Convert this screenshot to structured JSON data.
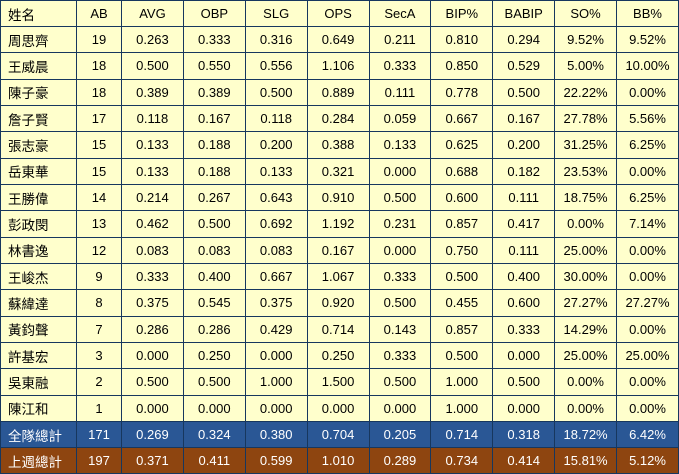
{
  "chart_data": {
    "type": "table",
    "title": "",
    "columns": [
      "姓名",
      "AB",
      "AVG",
      "OBP",
      "SLG",
      "OPS",
      "SecA",
      "BIP%",
      "BABIP",
      "SO%",
      "BB%"
    ],
    "rows": [
      [
        "周思齊",
        "19",
        "0.263",
        "0.333",
        "0.316",
        "0.649",
        "0.211",
        "0.810",
        "0.294",
        "9.52%",
        "9.52%"
      ],
      [
        "王威晨",
        "18",
        "0.500",
        "0.550",
        "0.556",
        "1.106",
        "0.333",
        "0.850",
        "0.529",
        "5.00%",
        "10.00%"
      ],
      [
        "陳子豪",
        "18",
        "0.389",
        "0.389",
        "0.500",
        "0.889",
        "0.111",
        "0.778",
        "0.500",
        "22.22%",
        "0.00%"
      ],
      [
        "詹子賢",
        "17",
        "0.118",
        "0.167",
        "0.118",
        "0.284",
        "0.059",
        "0.667",
        "0.167",
        "27.78%",
        "5.56%"
      ],
      [
        "張志豪",
        "15",
        "0.133",
        "0.188",
        "0.200",
        "0.388",
        "0.133",
        "0.625",
        "0.200",
        "31.25%",
        "6.25%"
      ],
      [
        "岳東華",
        "15",
        "0.133",
        "0.188",
        "0.133",
        "0.321",
        "0.000",
        "0.688",
        "0.182",
        "23.53%",
        "0.00%"
      ],
      [
        "王勝偉",
        "14",
        "0.214",
        "0.267",
        "0.643",
        "0.910",
        "0.500",
        "0.600",
        "0.111",
        "18.75%",
        "6.25%"
      ],
      [
        "彭政閔",
        "13",
        "0.462",
        "0.500",
        "0.692",
        "1.192",
        "0.231",
        "0.857",
        "0.417",
        "0.00%",
        "7.14%"
      ],
      [
        "林書逸",
        "12",
        "0.083",
        "0.083",
        "0.083",
        "0.167",
        "0.000",
        "0.750",
        "0.111",
        "25.00%",
        "0.00%"
      ],
      [
        "王峻杰",
        "9",
        "0.333",
        "0.400",
        "0.667",
        "1.067",
        "0.333",
        "0.500",
        "0.400",
        "30.00%",
        "0.00%"
      ],
      [
        "蘇緯達",
        "8",
        "0.375",
        "0.545",
        "0.375",
        "0.920",
        "0.500",
        "0.455",
        "0.600",
        "27.27%",
        "27.27%"
      ],
      [
        "黃鈞聲",
        "7",
        "0.286",
        "0.286",
        "0.429",
        "0.714",
        "0.143",
        "0.857",
        "0.333",
        "14.29%",
        "0.00%"
      ],
      [
        "許基宏",
        "3",
        "0.000",
        "0.250",
        "0.000",
        "0.250",
        "0.333",
        "0.500",
        "0.000",
        "25.00%",
        "25.00%"
      ],
      [
        "吳東融",
        "2",
        "0.500",
        "0.500",
        "1.000",
        "1.500",
        "0.500",
        "1.000",
        "0.500",
        "0.00%",
        "0.00%"
      ],
      [
        "陳江和",
        "1",
        "0.000",
        "0.000",
        "0.000",
        "0.000",
        "0.000",
        "1.000",
        "0.000",
        "0.00%",
        "0.00%"
      ]
    ],
    "total_rows": [
      {
        "label": "全隊總計",
        "style": "team",
        "values": [
          "171",
          "0.269",
          "0.324",
          "0.380",
          "0.704",
          "0.205",
          "0.714",
          "0.318",
          "18.72%",
          "6.42%"
        ]
      },
      {
        "label": "上週總計",
        "style": "lastweek",
        "values": [
          "197",
          "0.371",
          "0.411",
          "0.599",
          "1.010",
          "0.289",
          "0.734",
          "0.414",
          "15.81%",
          "5.12%"
        ]
      }
    ],
    "layout": {
      "grid": true,
      "header_position": "top"
    }
  },
  "colors": {
    "cell_bg": "#FFFFCC",
    "border": "#17375E",
    "team_total_bg": "#2A5795",
    "lastweek_total_bg": "#8E4510",
    "total_text": "#FFFFFF",
    "text": "#000000"
  }
}
